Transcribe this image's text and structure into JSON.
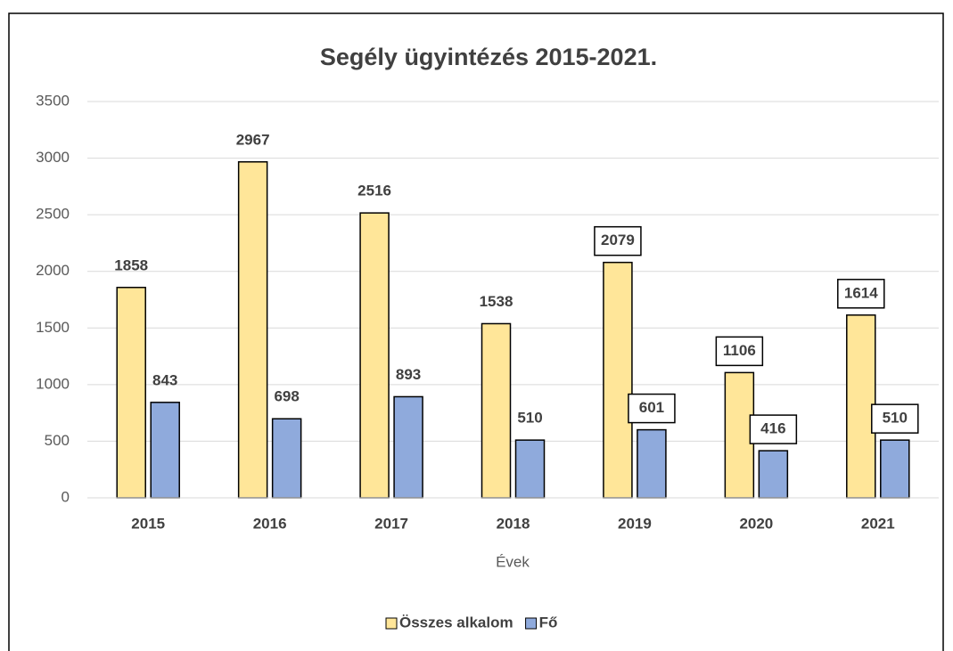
{
  "chart_data": {
    "type": "bar",
    "title": "Segély ügyintézés 2015-2021.",
    "x_label": "Évek",
    "categories": [
      "2015",
      "2016",
      "2017",
      "2018",
      "2019",
      "2020",
      "2021"
    ],
    "series": [
      {
        "name": "Összes alkalom",
        "color": "#ffe699",
        "values": [
          1858,
          2967,
          2516,
          1538,
          2079,
          1106,
          1614
        ]
      },
      {
        "name": "Fő",
        "color": "#8faadc",
        "values": [
          843,
          698,
          893,
          510,
          601,
          416,
          510
        ]
      }
    ],
    "label_box": [
      false,
      false,
      false,
      false,
      true,
      true,
      true
    ],
    "ylim": [
      0,
      3500
    ],
    "yticks": [
      0,
      500,
      1000,
      1500,
      2000,
      2500,
      3000,
      3500
    ],
    "grid": true,
    "legend": "bottom"
  }
}
